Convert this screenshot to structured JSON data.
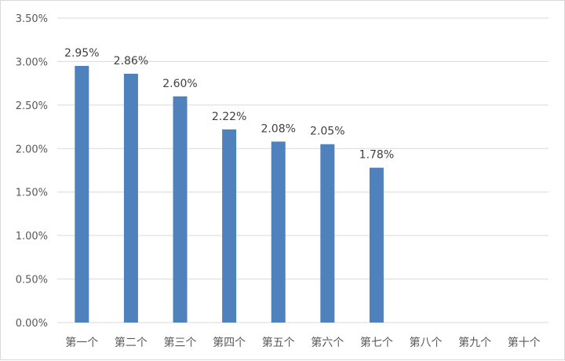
{
  "chart_data": {
    "type": "bar",
    "title": "",
    "xlabel": "",
    "ylabel": "",
    "categories": [
      "第一个",
      "第二个",
      "第三个",
      "第四个",
      "第五个",
      "第六个",
      "第七个",
      "第八个",
      "第九个",
      "第十个"
    ],
    "values": [
      2.95,
      2.86,
      2.6,
      2.22,
      2.08,
      2.05,
      1.78,
      null,
      null,
      null
    ],
    "data_labels": [
      "2.95%",
      "2.86%",
      "2.60%",
      "2.22%",
      "2.08%",
      "2.05%",
      "1.78%",
      "",
      "",
      ""
    ],
    "ylim": [
      0,
      3.5
    ],
    "y_ticks": [
      "0.00%",
      "0.50%",
      "1.00%",
      "1.50%",
      "2.00%",
      "2.50%",
      "3.00%",
      "3.50%"
    ],
    "y_unit": "%",
    "grid": true,
    "legend": "none",
    "bar_color": "#4f81bd",
    "grid_color": "#d9d9d9"
  }
}
